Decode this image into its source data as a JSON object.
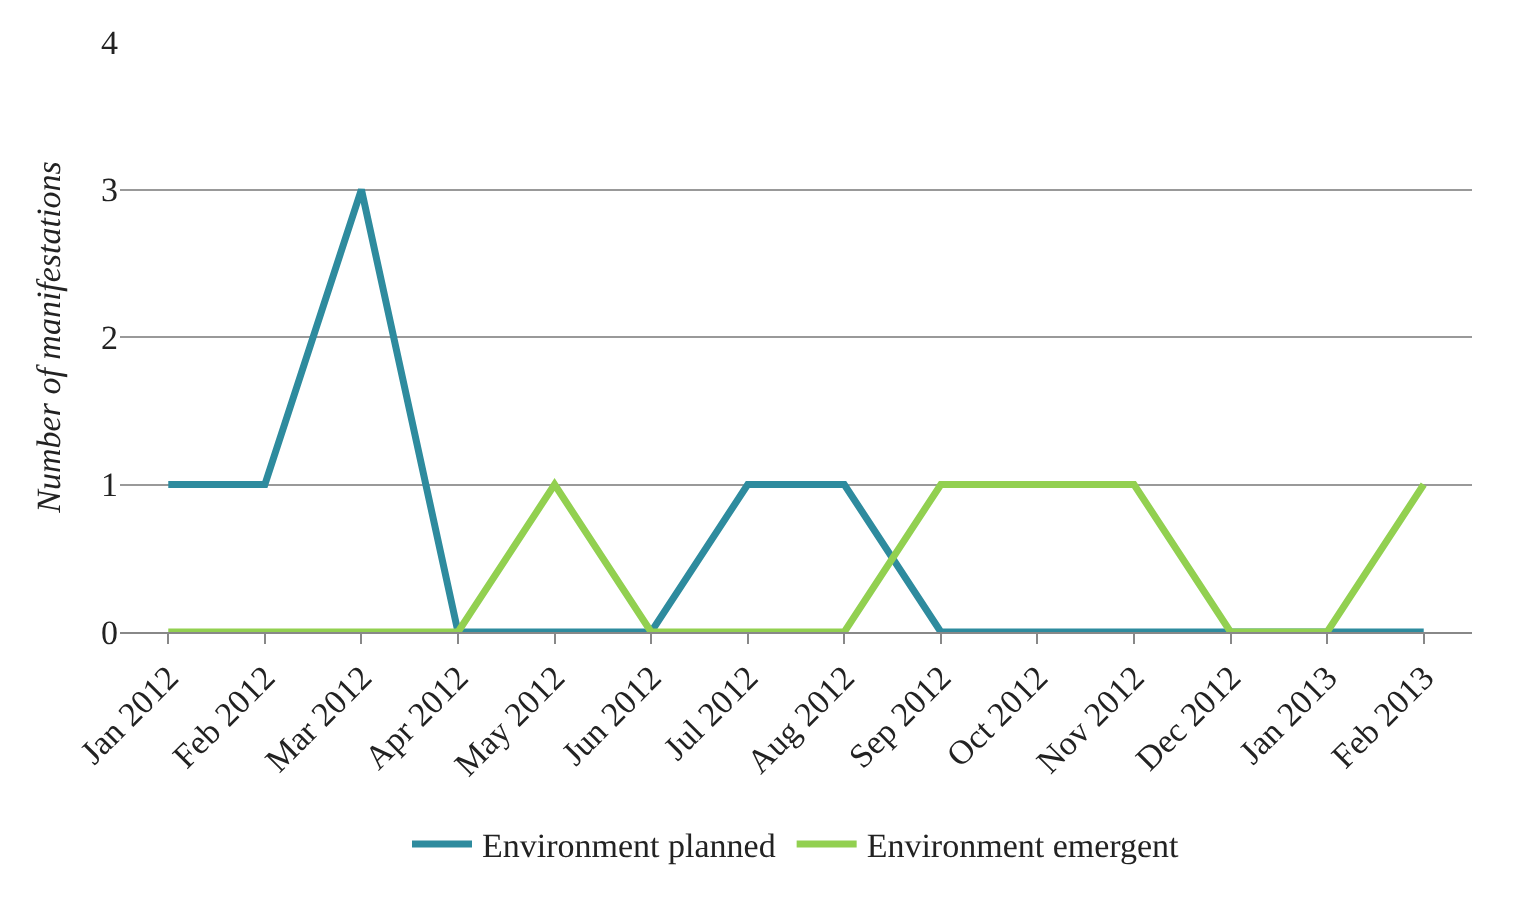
{
  "chart_data": {
    "type": "line",
    "ylabel": "Number of manifestations",
    "categories": [
      "Jan 2012",
      "Feb 2012",
      "Mar 2012",
      "Apr 2012",
      "May 2012",
      "Jun 2012",
      "Jul 2012",
      "Aug 2012",
      "Sep 2012",
      "Oct 2012",
      "Nov 2012",
      "Dec 2012",
      "Jan 2013",
      "Feb 2013"
    ],
    "series": [
      {
        "name": "Environment planned",
        "color": "#2e8b9e",
        "values": [
          1,
          1,
          3,
          0,
          0,
          0,
          1,
          1,
          0,
          0,
          0,
          0,
          0,
          0
        ]
      },
      {
        "name": "Environment emergent",
        "color": "#92d050",
        "values": [
          0,
          0,
          0,
          0,
          1,
          0,
          0,
          0,
          1,
          1,
          1,
          0,
          0,
          1
        ]
      }
    ],
    "ylim": [
      0,
      4
    ],
    "yticks": [
      0,
      1,
      2,
      3,
      4
    ],
    "grid": "y",
    "legend": "bottom",
    "marker": "none",
    "line_style": "solid"
  }
}
